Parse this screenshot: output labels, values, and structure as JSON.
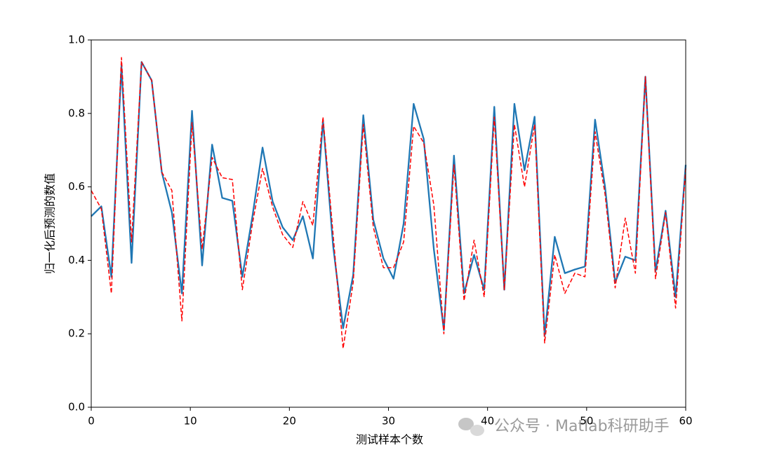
{
  "chart_data": {
    "type": "line",
    "xlabel": "测试样本个数",
    "ylabel": "归一化后预测的数值",
    "annotation": "公众号 · Matlab科研助手",
    "x": [
      0,
      1.02,
      2.03,
      3.05,
      4.07,
      5.08,
      6.1,
      7.12,
      8.14,
      9.15,
      10.17,
      11.19,
      12.2,
      13.22,
      14.24,
      15.25,
      16.27,
      17.29,
      18.31,
      19.32,
      20.34,
      21.36,
      22.37,
      23.39,
      24.41,
      25.42,
      26.44,
      27.46,
      28.47,
      29.49,
      30.51,
      31.53,
      32.54,
      33.56,
      34.58,
      35.59,
      36.61,
      37.63,
      38.64,
      39.66,
      40.68,
      41.69,
      42.71,
      43.73,
      44.75,
      45.76,
      46.78,
      47.8,
      48.81,
      49.83,
      50.85,
      51.86,
      52.88,
      53.9,
      54.92,
      55.93,
      56.95,
      57.97,
      58.98,
      60
    ],
    "series": [
      {
        "color": "#1f77b4",
        "linestyle": "solid",
        "values": [
          0.52,
          0.547,
          0.355,
          0.93,
          0.393,
          0.94,
          0.89,
          0.64,
          0.53,
          0.31,
          0.807,
          0.386,
          0.715,
          0.57,
          0.562,
          0.355,
          0.52,
          0.707,
          0.56,
          0.49,
          0.455,
          0.52,
          0.405,
          0.78,
          0.44,
          0.215,
          0.36,
          0.795,
          0.51,
          0.405,
          0.35,
          0.5,
          0.826,
          0.73,
          0.43,
          0.21,
          0.685,
          0.31,
          0.415,
          0.32,
          0.818,
          0.32,
          0.826,
          0.645,
          0.791,
          0.195,
          0.464,
          0.365,
          0.375,
          0.383,
          0.783,
          0.6,
          0.34,
          0.41,
          0.4,
          0.9,
          0.37,
          0.535,
          0.3,
          0.66
        ]
      },
      {
        "color": "#ff0000",
        "linestyle": "dashed",
        "values": [
          0.59,
          0.54,
          0.31,
          0.952,
          0.45,
          0.94,
          0.89,
          0.64,
          0.59,
          0.235,
          0.775,
          0.43,
          0.68,
          0.625,
          0.62,
          0.32,
          0.5,
          0.65,
          0.545,
          0.47,
          0.435,
          0.56,
          0.495,
          0.79,
          0.47,
          0.16,
          0.34,
          0.77,
          0.49,
          0.38,
          0.38,
          0.45,
          0.765,
          0.72,
          0.55,
          0.2,
          0.66,
          0.29,
          0.455,
          0.3,
          0.79,
          0.32,
          0.77,
          0.6,
          0.77,
          0.175,
          0.415,
          0.31,
          0.365,
          0.355,
          0.75,
          0.58,
          0.325,
          0.515,
          0.365,
          0.9,
          0.35,
          0.53,
          0.27,
          0.65
        ]
      }
    ],
    "xlim": [
      0,
      60
    ],
    "xticks": [
      0,
      10,
      20,
      30,
      40,
      50,
      60
    ],
    "ylim": [
      0,
      1
    ],
    "yticks": [
      {
        "value": 0,
        "label": "0.0"
      },
      0.2,
      0.4,
      0.6,
      0.8,
      {
        "value": 1,
        "label": "1.0"
      }
    ],
    "grid": false
  }
}
